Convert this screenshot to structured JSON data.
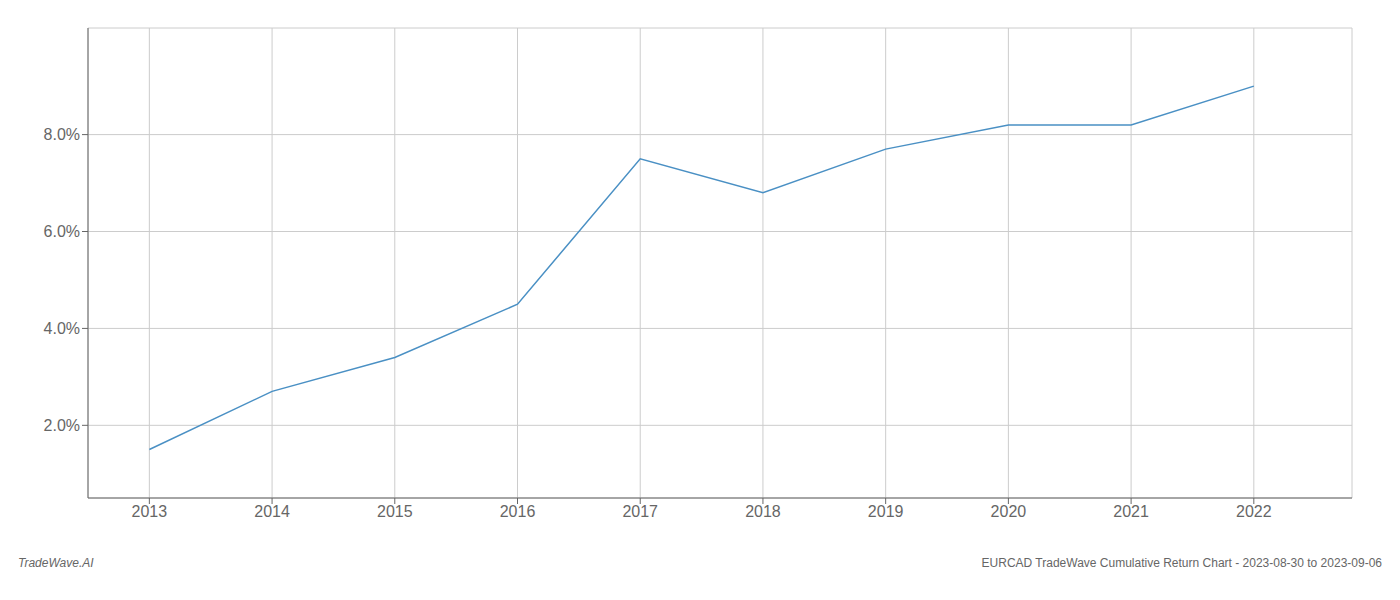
{
  "chart_data": {
    "type": "line",
    "x": [
      2013,
      2014,
      2015,
      2016,
      2017,
      2018,
      2019,
      2020,
      2021,
      2022
    ],
    "values": [
      0.015,
      0.027,
      0.034,
      0.045,
      0.075,
      0.068,
      0.077,
      0.082,
      0.082,
      0.09
    ],
    "color": "#4a90c4",
    "xlim": [
      2012.5,
      2022.8
    ],
    "ylim": [
      0.005,
      0.102
    ],
    "xticks": [
      2013,
      2014,
      2015,
      2016,
      2017,
      2018,
      2019,
      2020,
      2021,
      2022
    ],
    "yticks": [
      {
        "value": 0.02,
        "label": "2.0%"
      },
      {
        "value": 0.04,
        "label": "4.0%"
      },
      {
        "value": 0.06,
        "label": "6.0%"
      },
      {
        "value": 0.08,
        "label": "8.0%"
      }
    ],
    "grid": true,
    "annotations": [
      "TradeWave.AI",
      "EURCAD TradeWave Cumulative Return Chart - 2023-08-30 to 2023-09-06"
    ]
  }
}
